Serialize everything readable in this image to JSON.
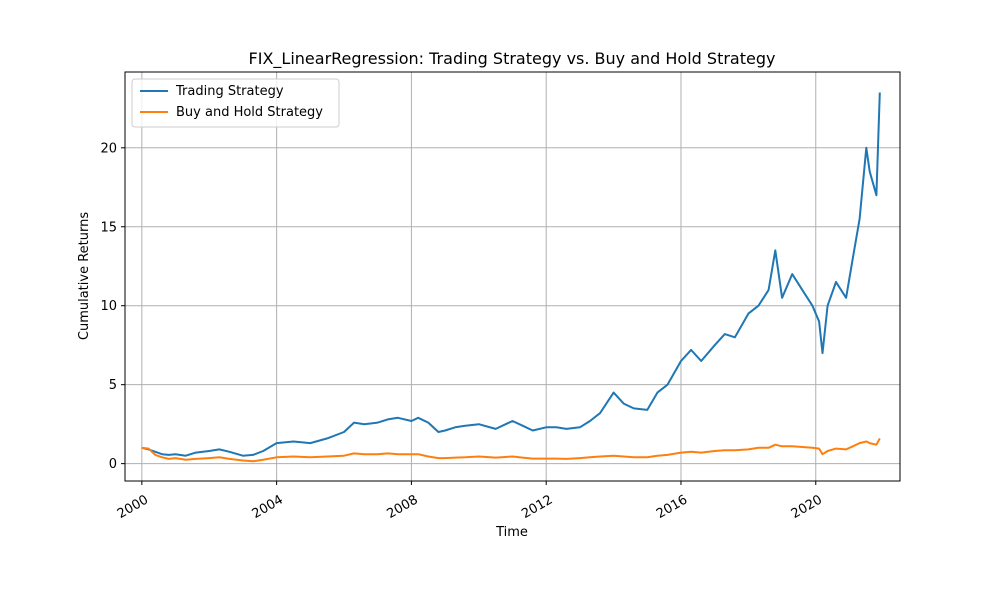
{
  "chart_data": {
    "type": "line",
    "title": "FIX_LinearRegression: Trading Strategy vs. Buy and Hold Strategy",
    "xlabel": "Time",
    "ylabel": "Cumulative Returns",
    "xlim": [
      1999.5,
      2022.5
    ],
    "ylim": [
      -1.1,
      24.8
    ],
    "x_ticks": [
      2000,
      2004,
      2008,
      2012,
      2016,
      2020
    ],
    "x_tick_labels": [
      "2000",
      "2004",
      "2008",
      "2012",
      "2016",
      "2020"
    ],
    "y_ticks": [
      0,
      5,
      10,
      15,
      20
    ],
    "y_tick_labels": [
      "0",
      "5",
      "10",
      "15",
      "20"
    ],
    "grid": true,
    "legend_position": "top-left",
    "x": [
      2000.0,
      2000.2,
      2000.4,
      2000.6,
      2000.8,
      2001.0,
      2001.3,
      2001.6,
      2002.0,
      2002.3,
      2002.6,
      2003.0,
      2003.3,
      2003.6,
      2004.0,
      2004.5,
      2005.0,
      2005.5,
      2006.0,
      2006.3,
      2006.6,
      2007.0,
      2007.3,
      2007.6,
      2008.0,
      2008.2,
      2008.5,
      2008.8,
      2009.0,
      2009.3,
      2009.6,
      2010.0,
      2010.5,
      2011.0,
      2011.3,
      2011.6,
      2012.0,
      2012.3,
      2012.6,
      2013.0,
      2013.3,
      2013.6,
      2014.0,
      2014.3,
      2014.6,
      2015.0,
      2015.3,
      2015.6,
      2016.0,
      2016.3,
      2016.6,
      2017.0,
      2017.3,
      2017.6,
      2018.0,
      2018.3,
      2018.6,
      2018.8,
      2019.0,
      2019.3,
      2019.6,
      2019.9,
      2020.1,
      2020.2,
      2020.35,
      2020.6,
      2020.9,
      2021.1,
      2021.3,
      2021.5,
      2021.6,
      2021.8,
      2021.9
    ],
    "series": [
      {
        "name": "Trading Strategy",
        "color": "#1f77b4",
        "values": [
          1.0,
          0.9,
          0.75,
          0.6,
          0.55,
          0.6,
          0.5,
          0.7,
          0.8,
          0.9,
          0.75,
          0.5,
          0.55,
          0.8,
          1.3,
          1.4,
          1.3,
          1.6,
          2.0,
          2.6,
          2.5,
          2.6,
          2.8,
          2.9,
          2.7,
          2.9,
          2.6,
          2.0,
          2.1,
          2.3,
          2.4,
          2.5,
          2.2,
          2.7,
          2.4,
          2.1,
          2.3,
          2.3,
          2.2,
          2.3,
          2.7,
          3.2,
          4.5,
          3.8,
          3.5,
          3.4,
          4.5,
          5.0,
          6.5,
          7.2,
          6.5,
          7.5,
          8.2,
          8.0,
          9.5,
          10.0,
          11.0,
          13.5,
          10.5,
          12.0,
          11.0,
          10.0,
          9.0,
          7.0,
          10.0,
          11.5,
          10.5,
          13.0,
          15.5,
          20.0,
          18.5,
          17.0,
          23.5
        ]
      },
      {
        "name": "Buy and Hold Strategy",
        "color": "#ff7f0e",
        "values": [
          1.0,
          0.95,
          0.55,
          0.4,
          0.3,
          0.35,
          0.25,
          0.3,
          0.35,
          0.4,
          0.3,
          0.2,
          0.15,
          0.25,
          0.4,
          0.45,
          0.4,
          0.45,
          0.5,
          0.65,
          0.6,
          0.6,
          0.65,
          0.6,
          0.6,
          0.6,
          0.45,
          0.35,
          0.35,
          0.38,
          0.4,
          0.45,
          0.38,
          0.45,
          0.38,
          0.32,
          0.32,
          0.32,
          0.3,
          0.35,
          0.4,
          0.45,
          0.5,
          0.45,
          0.4,
          0.4,
          0.5,
          0.55,
          0.7,
          0.75,
          0.7,
          0.8,
          0.85,
          0.85,
          0.9,
          1.0,
          1.0,
          1.2,
          1.1,
          1.1,
          1.05,
          1.0,
          0.95,
          0.6,
          0.8,
          0.95,
          0.9,
          1.1,
          1.3,
          1.4,
          1.3,
          1.2,
          1.6
        ]
      }
    ]
  }
}
